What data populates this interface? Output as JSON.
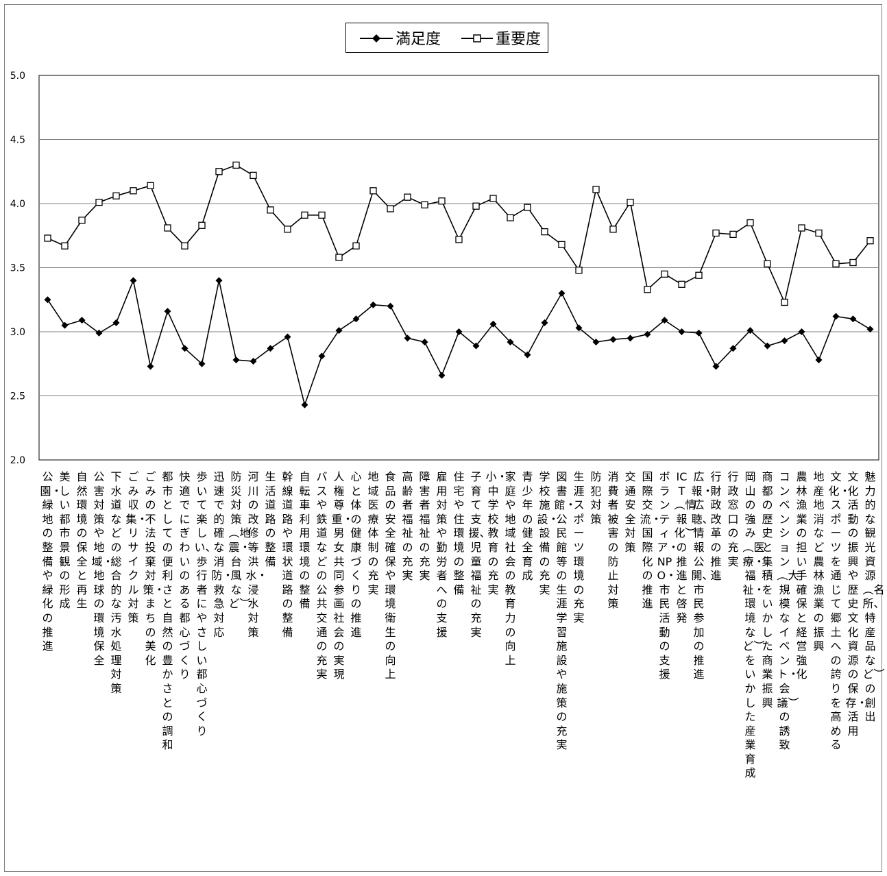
{
  "chart_data": {
    "type": "line",
    "ylim": [
      2.0,
      5.0
    ],
    "yticks": [
      "2.0",
      "2.5",
      "3.0",
      "3.5",
      "4.0",
      "4.5",
      "5.0"
    ],
    "grid": true,
    "legend_position": "top-center",
    "categories": [
      "公園・緑地の整備や緑化の推進",
      "美しい都市景観の形成",
      "自然環境の保全と再生",
      "公害対策や地域・地球の環境保全",
      "下水道などの総合的な汚水処理対策",
      "ごみ収集・リサイクル対策",
      "ごみの不法投棄対策・まちの美化",
      "都市としての便利さと自然の豊かさとの調和",
      "快適でにぎわいのある都心づくり",
      "歩いて楽しい、歩行者にやさしい都心づくり",
      "迅速で的確な消防・救急対応",
      "防災対策︵地震・台風など︶",
      "河川の改修等洪水・浸水対策",
      "生活道路の整備",
      "幹線道路や環状道路の整備",
      "自転車利用環境の整備",
      "バスや鉄道などの公共交通の充実",
      "人権尊重・男女共同参画社会の実現",
      "心と体の健康づくりの推進",
      "地域医療体制の充実",
      "食品の安全確保や環境衛生の向上",
      "高齢者福祉の充実",
      "障害者福祉の充実",
      "雇用対策や勤労者への支援",
      "住宅や住環境の整備",
      "子育て支援、児童福祉の充実",
      "小・中学校教育の充実",
      "家庭や地域社会の教育力の向上",
      "青少年の健全育成",
      "学校施設・設備の充実",
      "図書館・公民館等の生涯学習施設や施策の充実",
      "生涯スポーツ環境の充実",
      "防犯対策",
      "消費者被害の防止対策",
      "交通安全対策",
      "国際交流・国際化の推進",
      "ボランティア・NPO・市民活動の支援",
      "ICT︵情報化︶の推進と啓発",
      "広報・広聴、情報公開、市民参加の推進",
      "行財政改革の推進",
      "行政窓口の充実",
      "岡山の強み︵医療・福祉・環境など︶をいかした産業育成",
      "商都の歴史と集積をいかした商業振興",
      "コンベンション︵大規模なイベント・会議︶の誘致",
      "農林漁業の担い手確保と経営強化",
      "地産地消など農林漁業の振興",
      "文化・スポーツを通じて郷土への誇りを高める",
      "文化活動の振興や歴史文化資源の保存・活用",
      "魅力的な観光資源︵名所、特産品など︶の創出"
    ],
    "series": [
      {
        "name": "満足度",
        "marker": "diamond-filled",
        "values": [
          3.25,
          3.05,
          3.09,
          2.99,
          3.07,
          3.4,
          2.73,
          3.16,
          2.87,
          2.75,
          3.4,
          2.78,
          2.77,
          2.87,
          2.96,
          2.43,
          2.81,
          3.01,
          3.1,
          3.21,
          3.2,
          2.95,
          2.92,
          2.66,
          3.0,
          2.89,
          3.06,
          2.92,
          2.82,
          3.07,
          3.3,
          3.03,
          2.92,
          2.94,
          2.95,
          2.98,
          3.09,
          3.0,
          2.99,
          2.73,
          2.87,
          3.01,
          2.89,
          2.93,
          3.0,
          2.78,
          3.12,
          3.1,
          3.02
        ]
      },
      {
        "name": "重要度",
        "marker": "square-open",
        "values": [
          3.73,
          3.67,
          3.87,
          4.01,
          4.06,
          4.1,
          4.14,
          3.81,
          3.67,
          3.83,
          4.25,
          4.3,
          4.22,
          3.95,
          3.8,
          3.91,
          3.91,
          3.58,
          3.67,
          4.1,
          3.96,
          4.05,
          3.99,
          4.02,
          3.72,
          3.98,
          4.04,
          3.89,
          3.97,
          3.78,
          3.68,
          3.48,
          4.11,
          3.8,
          4.01,
          3.33,
          3.45,
          3.37,
          3.44,
          3.77,
          3.76,
          3.85,
          3.53,
          3.23,
          3.81,
          3.77,
          3.53,
          3.54,
          3.71
        ]
      }
    ]
  }
}
